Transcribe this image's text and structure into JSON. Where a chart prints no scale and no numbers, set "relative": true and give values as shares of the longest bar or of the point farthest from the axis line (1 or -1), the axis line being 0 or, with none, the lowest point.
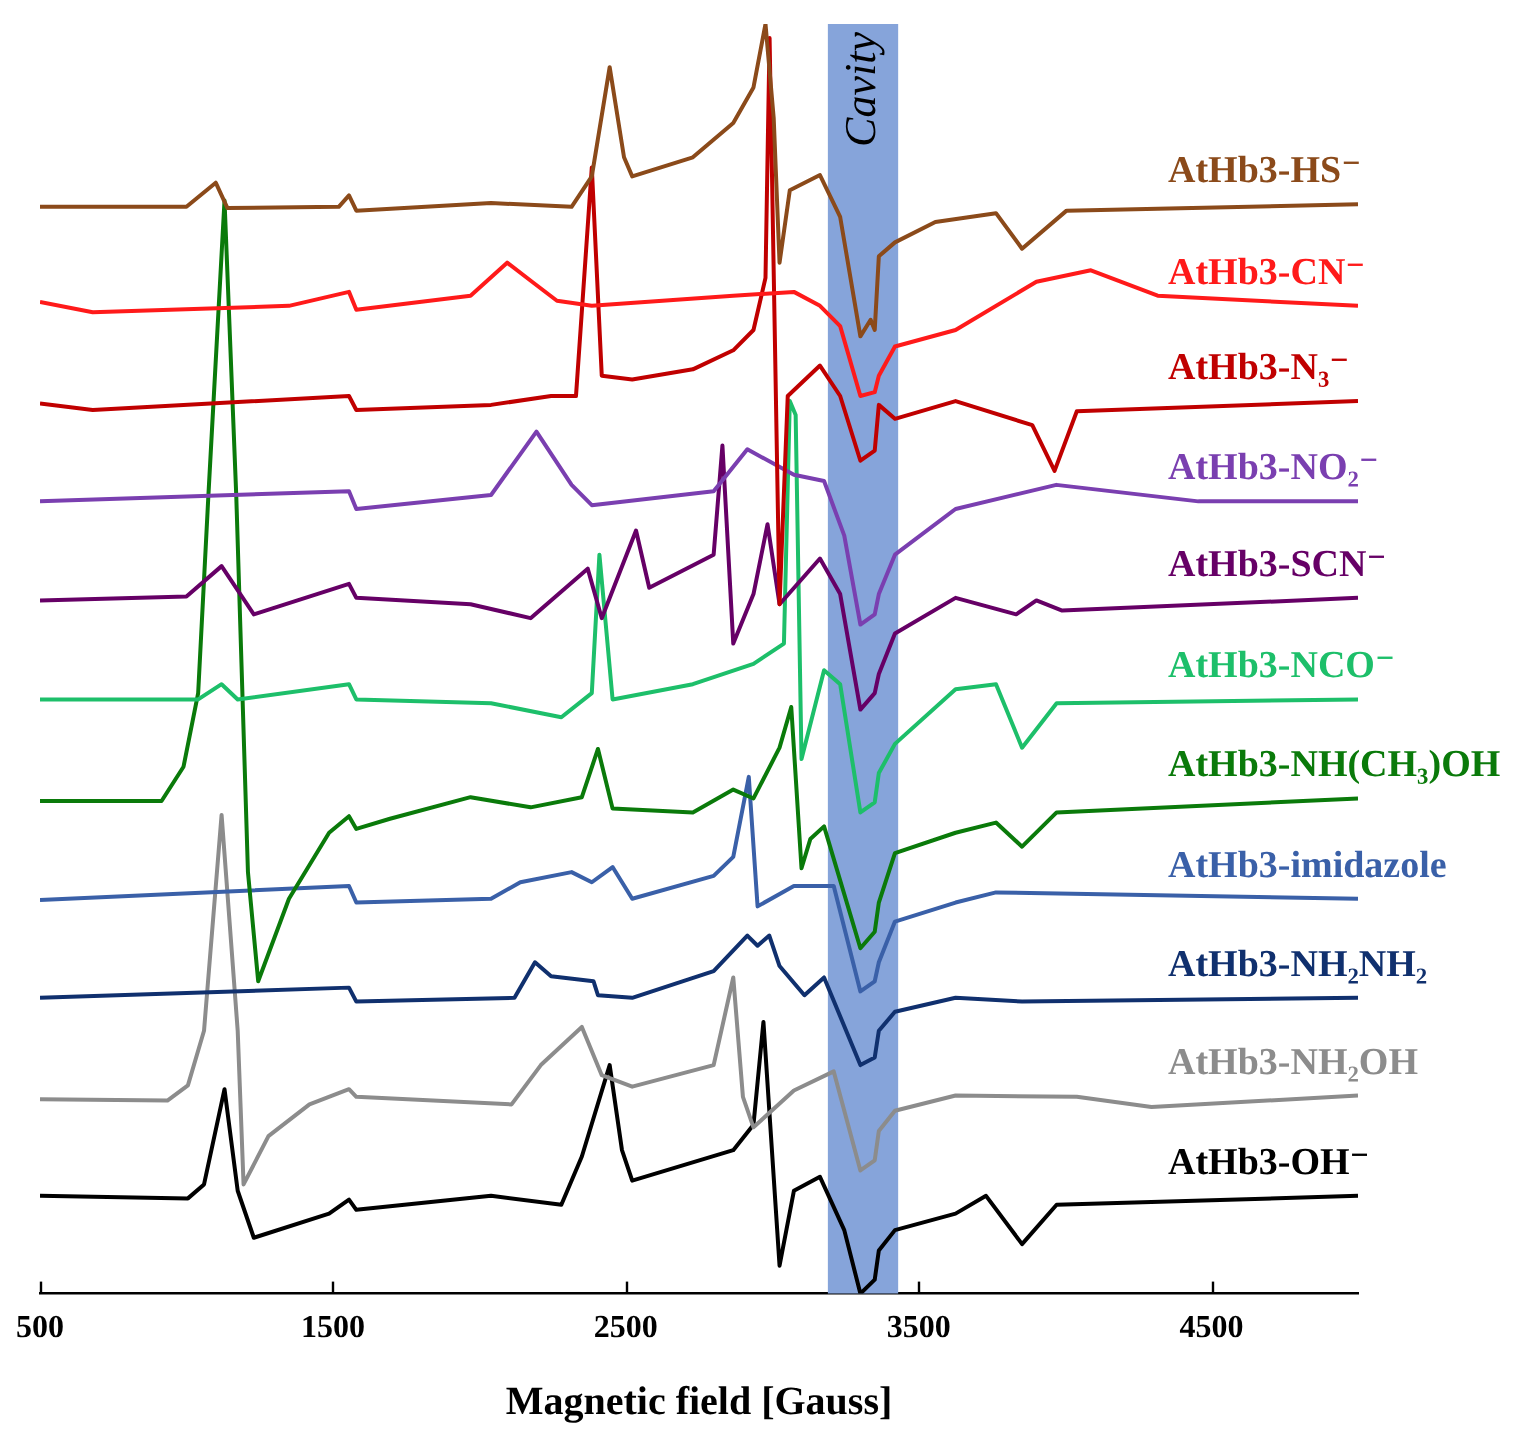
{
  "chart_data": {
    "type": "line",
    "relative": true,
    "xlabel": "Magnetic field [Gauss]",
    "xlim": [
      500,
      5000
    ],
    "xticks": [
      500,
      1500,
      2500,
      3500,
      4500
    ],
    "grid": false,
    "marker": "none",
    "line_style": "solid",
    "bands": [
      {
        "axis": "x",
        "from": 3190,
        "to": 3430,
        "label": "Cavity",
        "color": "#86a4da"
      }
    ],
    "series": [
      {
        "name": "AtHb3-HS⁻",
        "color": "#8b4a1a",
        "x": [
          500,
          1000,
          1100,
          1140,
          1520,
          1555,
          1580,
          2040,
          2315,
          2384,
          2445,
          2494,
          2522,
          2729,
          2867,
          2936,
          2977,
          3005,
          3025,
          3060,
          3163,
          3232,
          3301,
          3336,
          3350,
          3364,
          3419,
          3557,
          3764,
          3853,
          4005,
          5000
        ],
        "values": [
          0.856,
          0.856,
          0.875,
          0.855,
          0.856,
          0.865,
          0.853,
          0.859,
          0.856,
          0.88,
          0.966,
          0.895,
          0.88,
          0.895,
          0.922,
          0.95,
          1.0,
          0.926,
          0.812,
          0.869,
          0.881,
          0.848,
          0.754,
          0.767,
          0.759,
          0.817,
          0.828,
          0.844,
          0.851,
          0.823,
          0.853,
          0.858
        ]
      },
      {
        "name": "AtHb3-CN⁻",
        "color": "#ff1a1a",
        "x": [
          500,
          680,
          1350,
          1555,
          1580,
          1970,
          2095,
          2180,
          2265,
          2384,
          2867,
          3074,
          3163,
          3232,
          3301,
          3350,
          3364,
          3419,
          3626,
          3902,
          4088,
          4316,
          5000
        ],
        "values": [
          0.781,
          0.773,
          0.778,
          0.789,
          0.775,
          0.786,
          0.812,
          0.797,
          0.782,
          0.778,
          0.786,
          0.789,
          0.778,
          0.762,
          0.707,
          0.71,
          0.723,
          0.746,
          0.759,
          0.797,
          0.806,
          0.786,
          0.778
        ]
      },
      {
        "name": "AtHb3-N₃⁻",
        "color": "#c00000",
        "x": [
          500,
          680,
          1555,
          1580,
          2040,
          2245,
          2330,
          2384,
          2418,
          2522,
          2729,
          2867,
          2936,
          2977,
          2991,
          3025,
          3053,
          3163,
          3232,
          3301,
          3350,
          3364,
          3419,
          3626,
          3888,
          3964,
          4040,
          5000
        ],
        "values": [
          0.701,
          0.696,
          0.707,
          0.696,
          0.7,
          0.707,
          0.707,
          0.887,
          0.723,
          0.72,
          0.728,
          0.743,
          0.759,
          0.8,
          0.989,
          0.543,
          0.707,
          0.731,
          0.707,
          0.656,
          0.664,
          0.7,
          0.689,
          0.703,
          0.684,
          0.648,
          0.695,
          0.703
        ]
      },
      {
        "name": "AtHb3-NO₂⁻",
        "color": "#7a3fb0",
        "x": [
          500,
          1555,
          1580,
          2040,
          2195,
          2315,
          2384,
          2800,
          2915,
          3074,
          3177,
          3246,
          3301,
          3350,
          3364,
          3419,
          3626,
          3970,
          4455,
          5000
        ],
        "values": [
          0.624,
          0.632,
          0.618,
          0.629,
          0.679,
          0.637,
          0.621,
          0.632,
          0.665,
          0.645,
          0.64,
          0.597,
          0.527,
          0.535,
          0.551,
          0.582,
          0.618,
          0.637,
          0.624,
          0.624
        ]
      },
      {
        "name": "AtHb3-SCN⁻",
        "color": "#660066",
        "x": [
          500,
          1000,
          1120,
          1230,
          1555,
          1580,
          1970,
          2175,
          2370,
          2418,
          2535,
          2580,
          2800,
          2830,
          2867,
          2936,
          2984,
          3025,
          3163,
          3232,
          3301,
          3350,
          3364,
          3419,
          3626,
          3833,
          3902,
          3990,
          5000
        ],
        "values": [
          0.546,
          0.549,
          0.573,
          0.535,
          0.559,
          0.548,
          0.543,
          0.532,
          0.571,
          0.532,
          0.601,
          0.556,
          0.582,
          0.668,
          0.512,
          0.551,
          0.606,
          0.543,
          0.579,
          0.551,
          0.46,
          0.473,
          0.488,
          0.52,
          0.548,
          0.535,
          0.546,
          0.538,
          0.548
        ]
      },
      {
        "name": "AtHb3-NCO⁻",
        "color": "#1dbf6a",
        "x": [
          500,
          1040,
          1120,
          1175,
          1555,
          1580,
          2040,
          2280,
          2384,
          2410,
          2455,
          2729,
          2936,
          3040,
          3060,
          3080,
          3100,
          3177,
          3232,
          3301,
          3350,
          3364,
          3419,
          3626,
          3764,
          3853,
          3971,
          5000
        ],
        "values": [
          0.468,
          0.468,
          0.48,
          0.468,
          0.48,
          0.468,
          0.465,
          0.454,
          0.473,
          0.582,
          0.468,
          0.48,
          0.496,
          0.512,
          0.703,
          0.692,
          0.421,
          0.491,
          0.48,
          0.379,
          0.387,
          0.41,
          0.433,
          0.476,
          0.48,
          0.43,
          0.465,
          0.468
        ]
      },
      {
        "name": "AtHb3-NH(CH₃)OH",
        "color": "#0a7a0a",
        "x": [
          500,
          915,
          990,
          1040,
          1075,
          1130,
          1170,
          1210,
          1245,
          1350,
          1487,
          1555,
          1580,
          1695,
          1970,
          2175,
          2350,
          2405,
          2455,
          2729,
          2867,
          2936,
          3025,
          3065,
          3100,
          3130,
          3177,
          3301,
          3350,
          3364,
          3419,
          3626,
          3764,
          3853,
          3971,
          5000
        ],
        "values": [
          0.388,
          0.388,
          0.415,
          0.473,
          0.629,
          0.861,
          0.629,
          0.332,
          0.246,
          0.311,
          0.363,
          0.376,
          0.366,
          0.374,
          0.391,
          0.383,
          0.391,
          0.429,
          0.382,
          0.379,
          0.397,
          0.39,
          0.43,
          0.462,
          0.335,
          0.358,
          0.368,
          0.272,
          0.285,
          0.308,
          0.347,
          0.363,
          0.371,
          0.352,
          0.379,
          0.39
        ]
      },
      {
        "name": "AtHb3-imidazole",
        "color": "#3a60a8",
        "x": [
          500,
          1555,
          1580,
          2040,
          2140,
          2315,
          2384,
          2455,
          2522,
          2800,
          2867,
          2920,
          2950,
          3074,
          3210,
          3301,
          3350,
          3364,
          3419,
          3626,
          3764,
          5000
        ],
        "values": [
          0.31,
          0.321,
          0.308,
          0.311,
          0.324,
          0.332,
          0.324,
          0.336,
          0.311,
          0.329,
          0.344,
          0.407,
          0.305,
          0.321,
          0.321,
          0.238,
          0.246,
          0.261,
          0.293,
          0.308,
          0.316,
          0.311
        ]
      },
      {
        "name": "AtHb3-NH₂NH₂",
        "color": "#10306e",
        "x": [
          500,
          1555,
          1580,
          2120,
          2190,
          2245,
          2390,
          2405,
          2522,
          2800,
          2915,
          2950,
          2990,
          3025,
          3110,
          3177,
          3301,
          3350,
          3364,
          3419,
          3626,
          3853,
          5000
        ],
        "values": [
          0.233,
          0.241,
          0.23,
          0.233,
          0.261,
          0.25,
          0.246,
          0.235,
          0.233,
          0.254,
          0.282,
          0.274,
          0.282,
          0.258,
          0.235,
          0.249,
          0.18,
          0.186,
          0.207,
          0.222,
          0.233,
          0.23,
          0.233
        ]
      },
      {
        "name": "AtHb3-NH₂OH",
        "color": "#8c8c8c",
        "x": [
          500,
          935,
          1005,
          1060,
          1120,
          1175,
          1195,
          1280,
          1420,
          1555,
          1580,
          2110,
          2210,
          2350,
          2418,
          2522,
          2800,
          2867,
          2900,
          2936,
          3074,
          3210,
          3301,
          3350,
          3364,
          3419,
          3626,
          4040,
          4295,
          5000
        ],
        "values": [
          0.153,
          0.152,
          0.164,
          0.207,
          0.377,
          0.207,
          0.086,
          0.124,
          0.149,
          0.161,
          0.155,
          0.149,
          0.18,
          0.21,
          0.172,
          0.163,
          0.18,
          0.249,
          0.155,
          0.131,
          0.16,
          0.175,
          0.097,
          0.105,
          0.128,
          0.144,
          0.156,
          0.155,
          0.147,
          0.156
        ]
      },
      {
        "name": "AtHb3-OH⁻",
        "color": "#000000",
        "x": [
          500,
          1005,
          1060,
          1130,
          1175,
          1230,
          1487,
          1555,
          1580,
          2040,
          2280,
          2350,
          2445,
          2487,
          2522,
          2867,
          2936,
          2970,
          3025,
          3074,
          3163,
          3246,
          3301,
          3350,
          3364,
          3419,
          3626,
          3730,
          3853,
          3971,
          5000
        ],
        "values": [
          0.077,
          0.075,
          0.086,
          0.161,
          0.081,
          0.044,
          0.063,
          0.074,
          0.066,
          0.077,
          0.07,
          0.108,
          0.18,
          0.113,
          0.089,
          0.113,
          0.133,
          0.214,
          0.022,
          0.081,
          0.092,
          0.05,
          0.0,
          0.011,
          0.034,
          0.05,
          0.063,
          0.077,
          0.039,
          0.07,
          0.077
        ]
      }
    ]
  }
}
